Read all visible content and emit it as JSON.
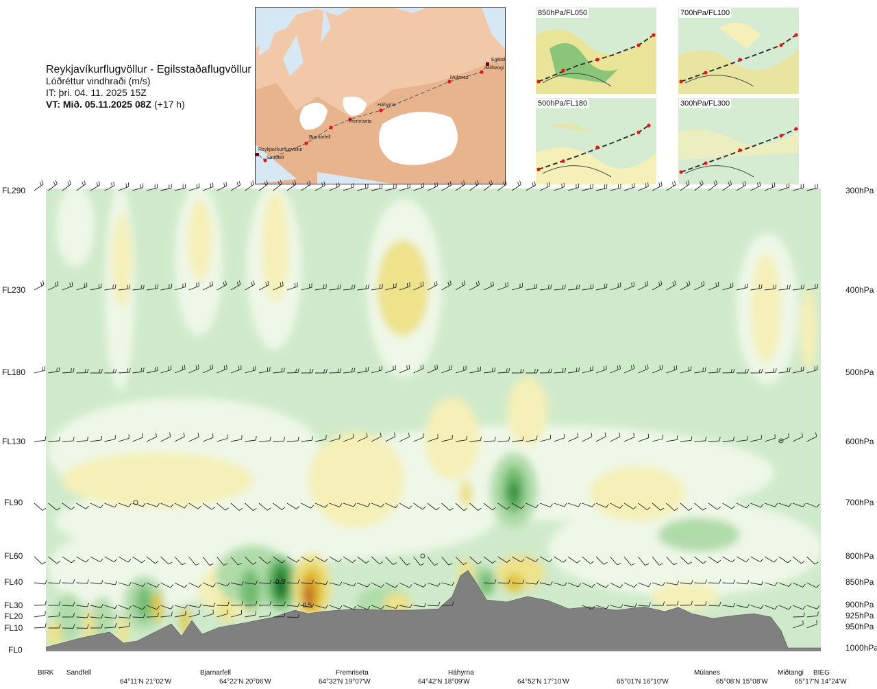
{
  "title": {
    "route": "Reykjavíkurflugvöllur - Egilsstaðaflugvöllur",
    "quantity": "Lóðréttur vindhraði (m/s)",
    "it_line": "IT: þri. 04. 11. 2025 15Z",
    "vt_bold": "VT: Mið. 05.11.2025 08Z",
    "vt_suffix": " (+17 h)"
  },
  "map": {
    "stations": [
      "Reykjavíkurflugvöllur",
      "Sandfell",
      "Bjarnarfell",
      "Fremriseta",
      "Háhyrna",
      "Múlanes",
      "Miðtangi",
      "Egilsstaðir"
    ]
  },
  "mini_maps": [
    {
      "label": "850hPa/FL050"
    },
    {
      "label": "700hPa/FL100"
    },
    {
      "label": "500hPa/FL180"
    },
    {
      "label": "300hPa/FL300"
    }
  ],
  "colors": {
    "plot_bg": "#cfeacb",
    "very_light": "#eff8e8",
    "pale_green": "#b0dcaa",
    "mid_green": "#72bd72",
    "dark_green": "#2f8f3b",
    "deepest_green": "#0f6a1e",
    "pale_yellow": "#f5f0b7",
    "yellow": "#eee28a",
    "gold": "#e1c637",
    "orange": "#d89528",
    "brown": "#b66a2c",
    "terrain": "#808080",
    "barb": "#222222"
  },
  "chart_data": {
    "type": "heatmap",
    "quantity": "Lóðréttur vindhraði (m/s)",
    "y_levels": [
      {
        "fl": "FL290",
        "hpa": "300hPa"
      },
      {
        "fl": "FL230",
        "hpa": "400hPa"
      },
      {
        "fl": "FL180",
        "hpa": "500hPa"
      },
      {
        "fl": "FL130",
        "hpa": "600hPa"
      },
      {
        "fl": "FL90",
        "hpa": "700hPa"
      },
      {
        "fl": "FL60",
        "hpa": "800hPa"
      },
      {
        "fl": "FL40",
        "hpa": "850hPa"
      },
      {
        "fl": "FL30",
        "hpa": "900hPa"
      },
      {
        "fl": "FL20",
        "hpa": "925hPa"
      },
      {
        "fl": "FL10",
        "hpa": "950hPa"
      },
      {
        "fl": "FL0",
        "hpa": "1000hPa"
      }
    ],
    "x_locations": [
      "BIRK",
      "Sandfell",
      "Bjarnarfell",
      "Fremriseta",
      "Háhyrna",
      "Múlanes",
      "Miðtangi",
      "BIEG"
    ],
    "x_coords": [
      "64°11'N 21°02'W",
      "64°22'N 20°06'W",
      "64°32'N 19°07'W",
      "64°42'N 18°09'W",
      "64°52'N 17°10'W",
      "65°01'N 16°10'W",
      "65°08'N 15°08'W",
      "65°17'N 14°24'W"
    ],
    "contour_labels": [
      "0.5",
      "-0.5"
    ]
  }
}
